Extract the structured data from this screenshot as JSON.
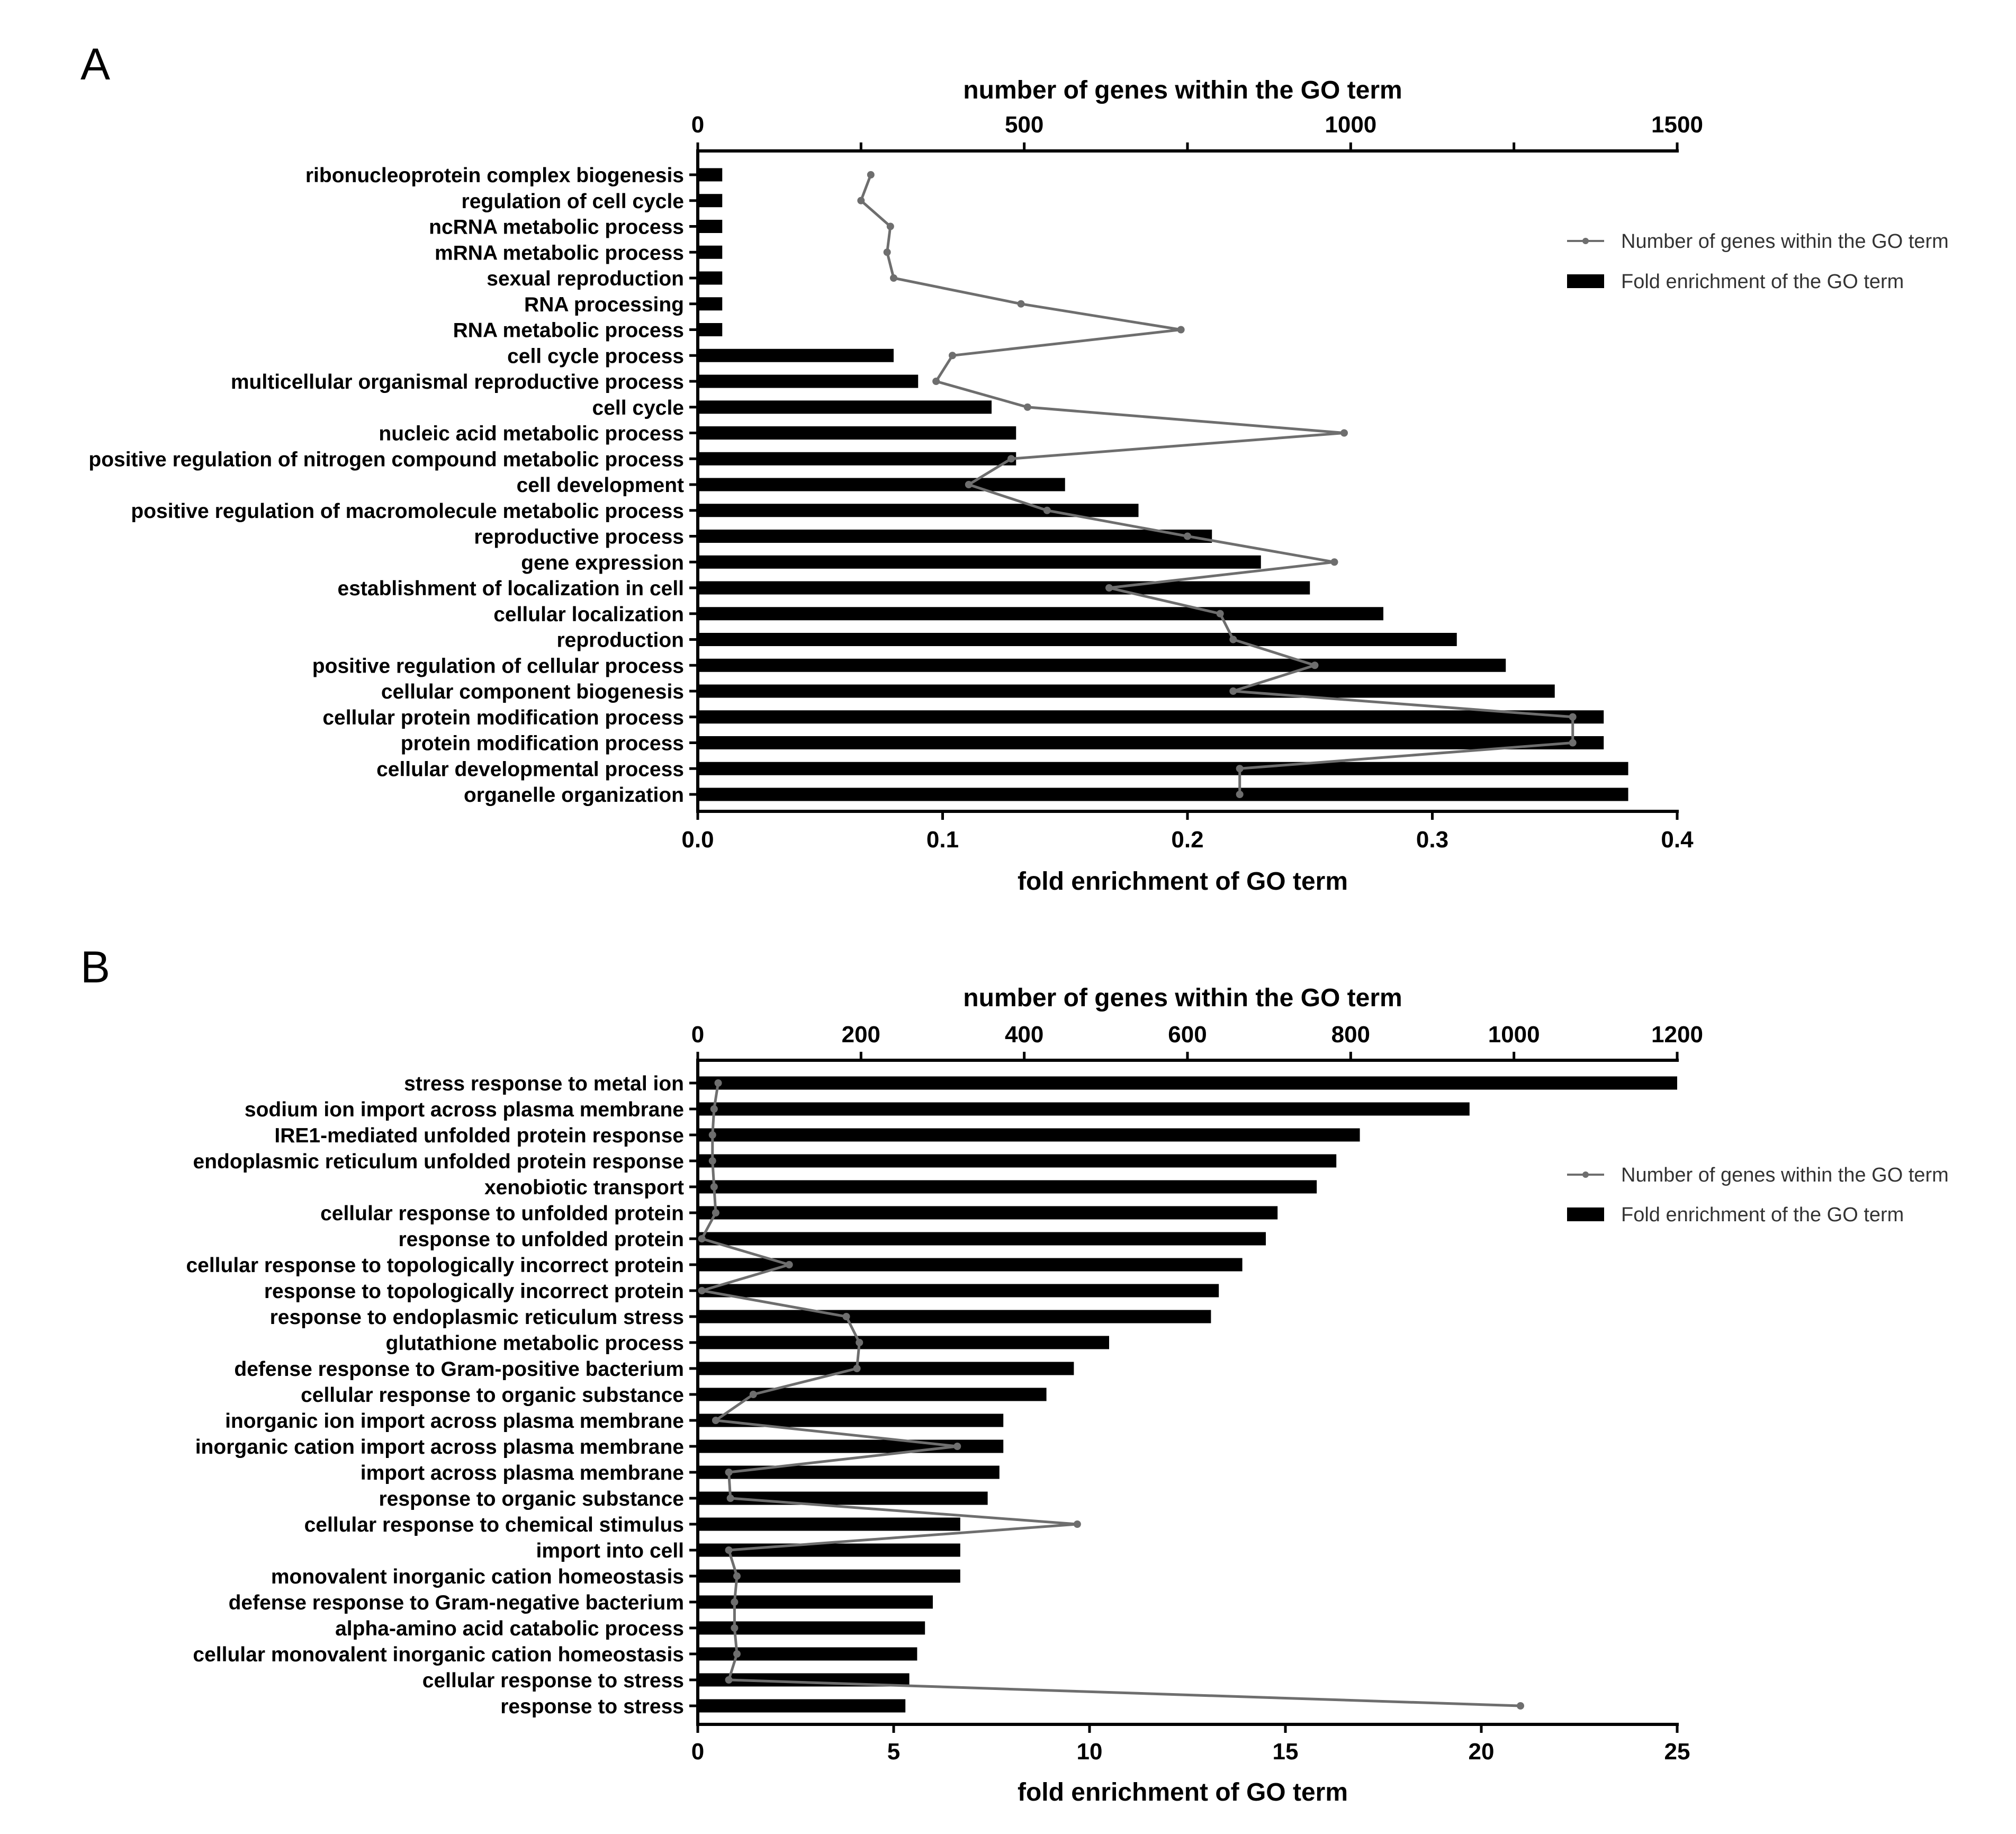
{
  "chart_data": [
    {
      "panel": "A",
      "type": "bar",
      "orientation": "horizontal",
      "title": "",
      "top_axis": {
        "label": "number of genes within the GO term",
        "min": 0,
        "max": 1500,
        "ticks": [
          0,
          500,
          1000,
          1500
        ],
        "minor_ticks": [
          250,
          750,
          1250
        ]
      },
      "bottom_axis": {
        "label": "fold enrichment of GO term",
        "min": 0,
        "max": 0.4,
        "ticks": [
          0.0,
          0.1,
          0.2,
          0.3,
          0.4
        ],
        "tick_labels": [
          "0.0",
          "0.1",
          "0.2",
          "0.3",
          "0.4"
        ]
      },
      "categories": [
        "ribonucleoprotein complex biogenesis",
        "regulation of cell cycle",
        "ncRNA metabolic process",
        "mRNA metabolic process",
        "sexual reproduction",
        "RNA processing",
        "RNA metabolic process",
        "cell cycle process",
        "multicellular organismal reproductive process",
        "cell cycle",
        "nucleic acid metabolic process",
        "positive regulation of nitrogen compound metabolic process",
        "cell development",
        "positive regulation of macromolecule metabolic process",
        "reproductive process",
        "gene expression",
        "establishment of localization in cell",
        "cellular localization",
        "reproduction",
        "positive regulation of cellular process",
        "cellular component biogenesis",
        "cellular protein modification process",
        "protein modification process",
        "cellular developmental process",
        "organelle organization"
      ],
      "series": [
        {
          "name": "Fold enrichment of the GO term",
          "kind": "bar",
          "axis": "bottom",
          "values": [
            0.01,
            0.01,
            0.01,
            0.01,
            0.01,
            0.01,
            0.01,
            0.08,
            0.09,
            0.12,
            0.13,
            0.13,
            0.15,
            0.18,
            0.21,
            0.23,
            0.25,
            0.28,
            0.31,
            0.33,
            0.35,
            0.37,
            0.37,
            0.38,
            0.38
          ]
        },
        {
          "name": "Number of genes within the GO term",
          "kind": "line",
          "axis": "top",
          "values": [
            265,
            250,
            295,
            290,
            300,
            495,
            740,
            390,
            365,
            505,
            990,
            480,
            415,
            535,
            750,
            975,
            630,
            800,
            820,
            945,
            820,
            1340,
            1340,
            830,
            830
          ]
        }
      ]
    },
    {
      "panel": "B",
      "type": "bar",
      "orientation": "horizontal",
      "title": "",
      "top_axis": {
        "label": "number of genes within the GO term",
        "min": 0,
        "max": 1200,
        "ticks": [
          0,
          200,
          400,
          600,
          800,
          1000,
          1200
        ],
        "minor_ticks": []
      },
      "bottom_axis": {
        "label": "fold enrichment of GO term",
        "min": 0,
        "max": 25,
        "ticks": [
          0,
          5,
          10,
          15,
          20,
          25
        ],
        "tick_labels": [
          "0",
          "5",
          "10",
          "15",
          "20",
          "25"
        ]
      },
      "categories": [
        "stress response to metal ion",
        "sodium ion import across plasma membrane",
        "IRE1-mediated unfolded protein response",
        "endoplasmic reticulum unfolded protein response",
        "xenobiotic transport",
        "cellular response to unfolded protein",
        "response to unfolded protein",
        "cellular response to topologically incorrect protein",
        "response to topologically incorrect protein",
        "response to endoplasmic reticulum stress",
        "glutathione metabolic process",
        "defense response to Gram-positive bacterium",
        "cellular response to organic substance",
        "inorganic ion import across plasma membrane",
        "inorganic cation import across plasma membrane",
        "import across plasma membrane",
        "response to organic substance",
        "cellular response to chemical stimulus",
        "import into cell",
        "monovalent inorganic cation homeostasis",
        "defense response to Gram-negative bacterium",
        "alpha-amino acid catabolic process",
        "cellular monovalent inorganic cation homeostasis",
        "cellular response to stress",
        "response to stress"
      ],
      "series": [
        {
          "name": "Fold enrichment of the GO term",
          "kind": "bar",
          "axis": "bottom",
          "values": [
            25.0,
            19.7,
            16.9,
            16.3,
            15.8,
            14.8,
            14.5,
            13.9,
            13.3,
            13.1,
            10.5,
            9.6,
            8.9,
            7.8,
            7.8,
            7.7,
            7.4,
            6.7,
            6.7,
            6.7,
            6.0,
            5.8,
            5.6,
            5.4,
            5.3
          ]
        },
        {
          "name": "Number of genes within the GO term",
          "kind": "line",
          "axis": "top",
          "values": [
            25,
            20,
            18,
            18,
            20,
            22,
            5,
            112,
            5,
            182,
            198,
            195,
            68,
            22,
            318,
            38,
            40,
            465,
            38,
            48,
            45,
            45,
            48,
            38,
            1008
          ]
        }
      ]
    }
  ],
  "legend": {
    "line_label": "Number of genes within the GO term",
    "bar_label": "Fold enrichment of the GO term",
    "placement": "right"
  },
  "colors": {
    "bar": "#000000",
    "line": "#6e6e6e",
    "axis": "#000000"
  }
}
